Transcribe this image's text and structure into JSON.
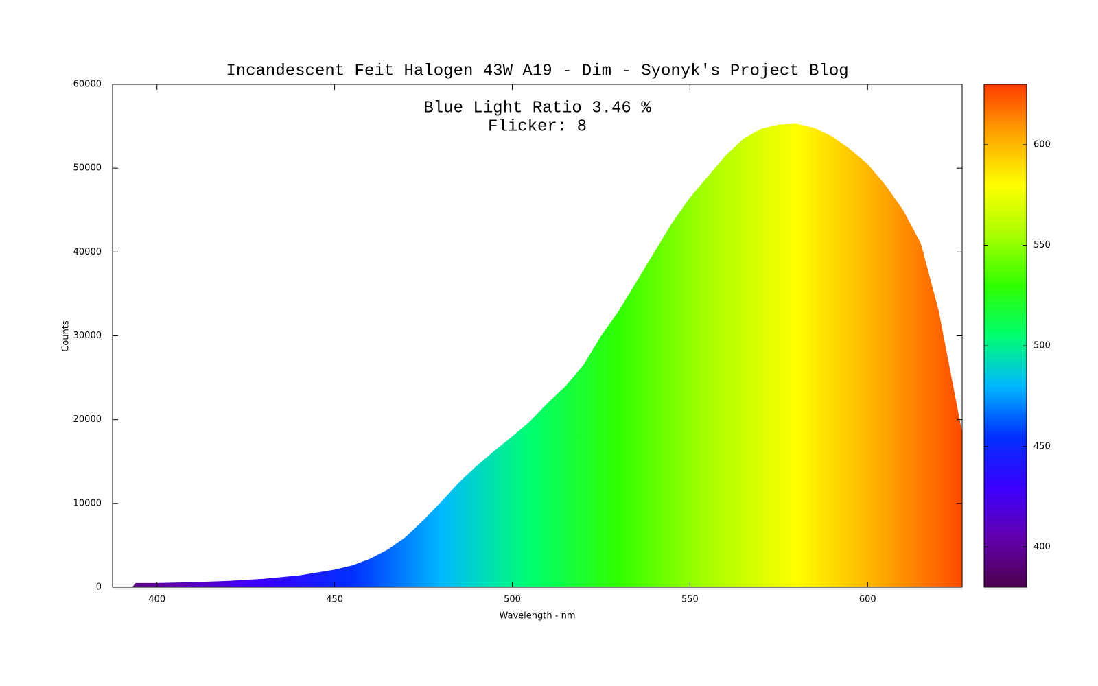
{
  "chart_data": {
    "type": "area",
    "title": "Incandescent Feit Halogen 43W A19 - Dim - Syonyk's Project Blog",
    "annotations": [
      "Blue Light Ratio 3.46 %",
      "Flicker: 8"
    ],
    "xlabel": "Wavelength - nm",
    "ylabel": "Counts",
    "x": [
      387.5,
      390,
      393,
      394,
      400,
      410,
      420,
      430,
      440,
      450,
      455,
      460,
      465,
      470,
      475,
      480,
      485,
      490,
      495,
      500,
      505,
      510,
      515,
      520,
      525,
      530,
      535,
      540,
      545,
      550,
      555,
      560,
      565,
      570,
      575,
      580,
      585,
      590,
      595,
      600,
      605,
      610,
      615,
      620,
      625,
      626.6
    ],
    "values": [
      0,
      0,
      0,
      500,
      500,
      600,
      750,
      1000,
      1400,
      2100,
      2600,
      3400,
      4500,
      6000,
      8000,
      10200,
      12500,
      14500,
      16300,
      18000,
      19800,
      22000,
      24000,
      26500,
      30000,
      33000,
      36500,
      40000,
      43500,
      46500,
      49000,
      51500,
      53500,
      54700,
      55200,
      55300,
      54800,
      53800,
      52300,
      50500,
      48000,
      45000,
      41000,
      33000,
      22000,
      18500
    ],
    "xlim": [
      387.5,
      626.6
    ],
    "xticks": [
      400,
      450,
      500,
      550,
      600
    ],
    "ylim": [
      0,
      60000
    ],
    "yticks": [
      0,
      10000,
      20000,
      30000,
      40000,
      50000,
      60000
    ],
    "cblim": [
      380,
      630
    ],
    "cbticks": [
      400,
      450,
      500,
      550,
      600
    ],
    "colormap": [
      "#4b004b",
      "#6200b0",
      "#3a00ff",
      "#0030ff",
      "#00b8ff",
      "#00ff70",
      "#30ff00",
      "#a8ff00",
      "#ffff00",
      "#ffa500",
      "#ff3c00"
    ]
  }
}
